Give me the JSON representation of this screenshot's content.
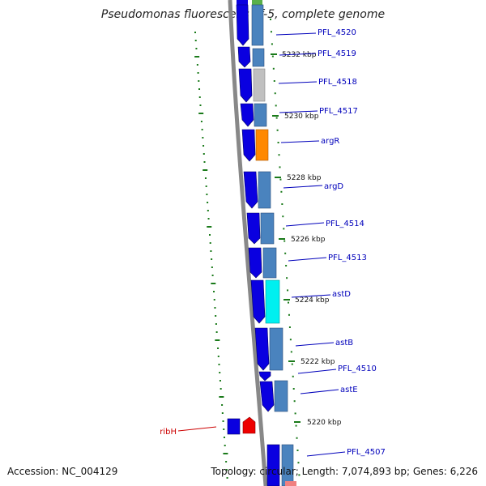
{
  "header": {
    "title": "Pseudomonas fluorescens Pf-5, complete genome"
  },
  "footer": {
    "accession": "Accession: NC_004129",
    "summary": "Topology: circular; Length: 7,074,893 bp; Genes: 6,226"
  },
  "colors": {
    "backbone": "#888888",
    "forward_gene": "#0a00e0",
    "reverse_gene": "#4a83be",
    "gene_label": "#0000bb",
    "highlight_label": "#cc0000",
    "tick": "#1a7a1a"
  },
  "scale_labels": [
    "5232 kbp",
    "5230 kbp",
    "5228 kbp",
    "5226 kbp",
    "5224 kbp",
    "5222 kbp",
    "5220 kbp"
  ],
  "gene_labels": [
    "PFL_4520",
    "PFL_4519",
    "PFL_4518",
    "PFL_4517",
    "argR",
    "argD",
    "PFL_4514",
    "PFL_4513",
    "astD",
    "astB",
    "PFL_4510",
    "astE",
    "PFL_4507"
  ],
  "highlight_gene": "ribH"
}
